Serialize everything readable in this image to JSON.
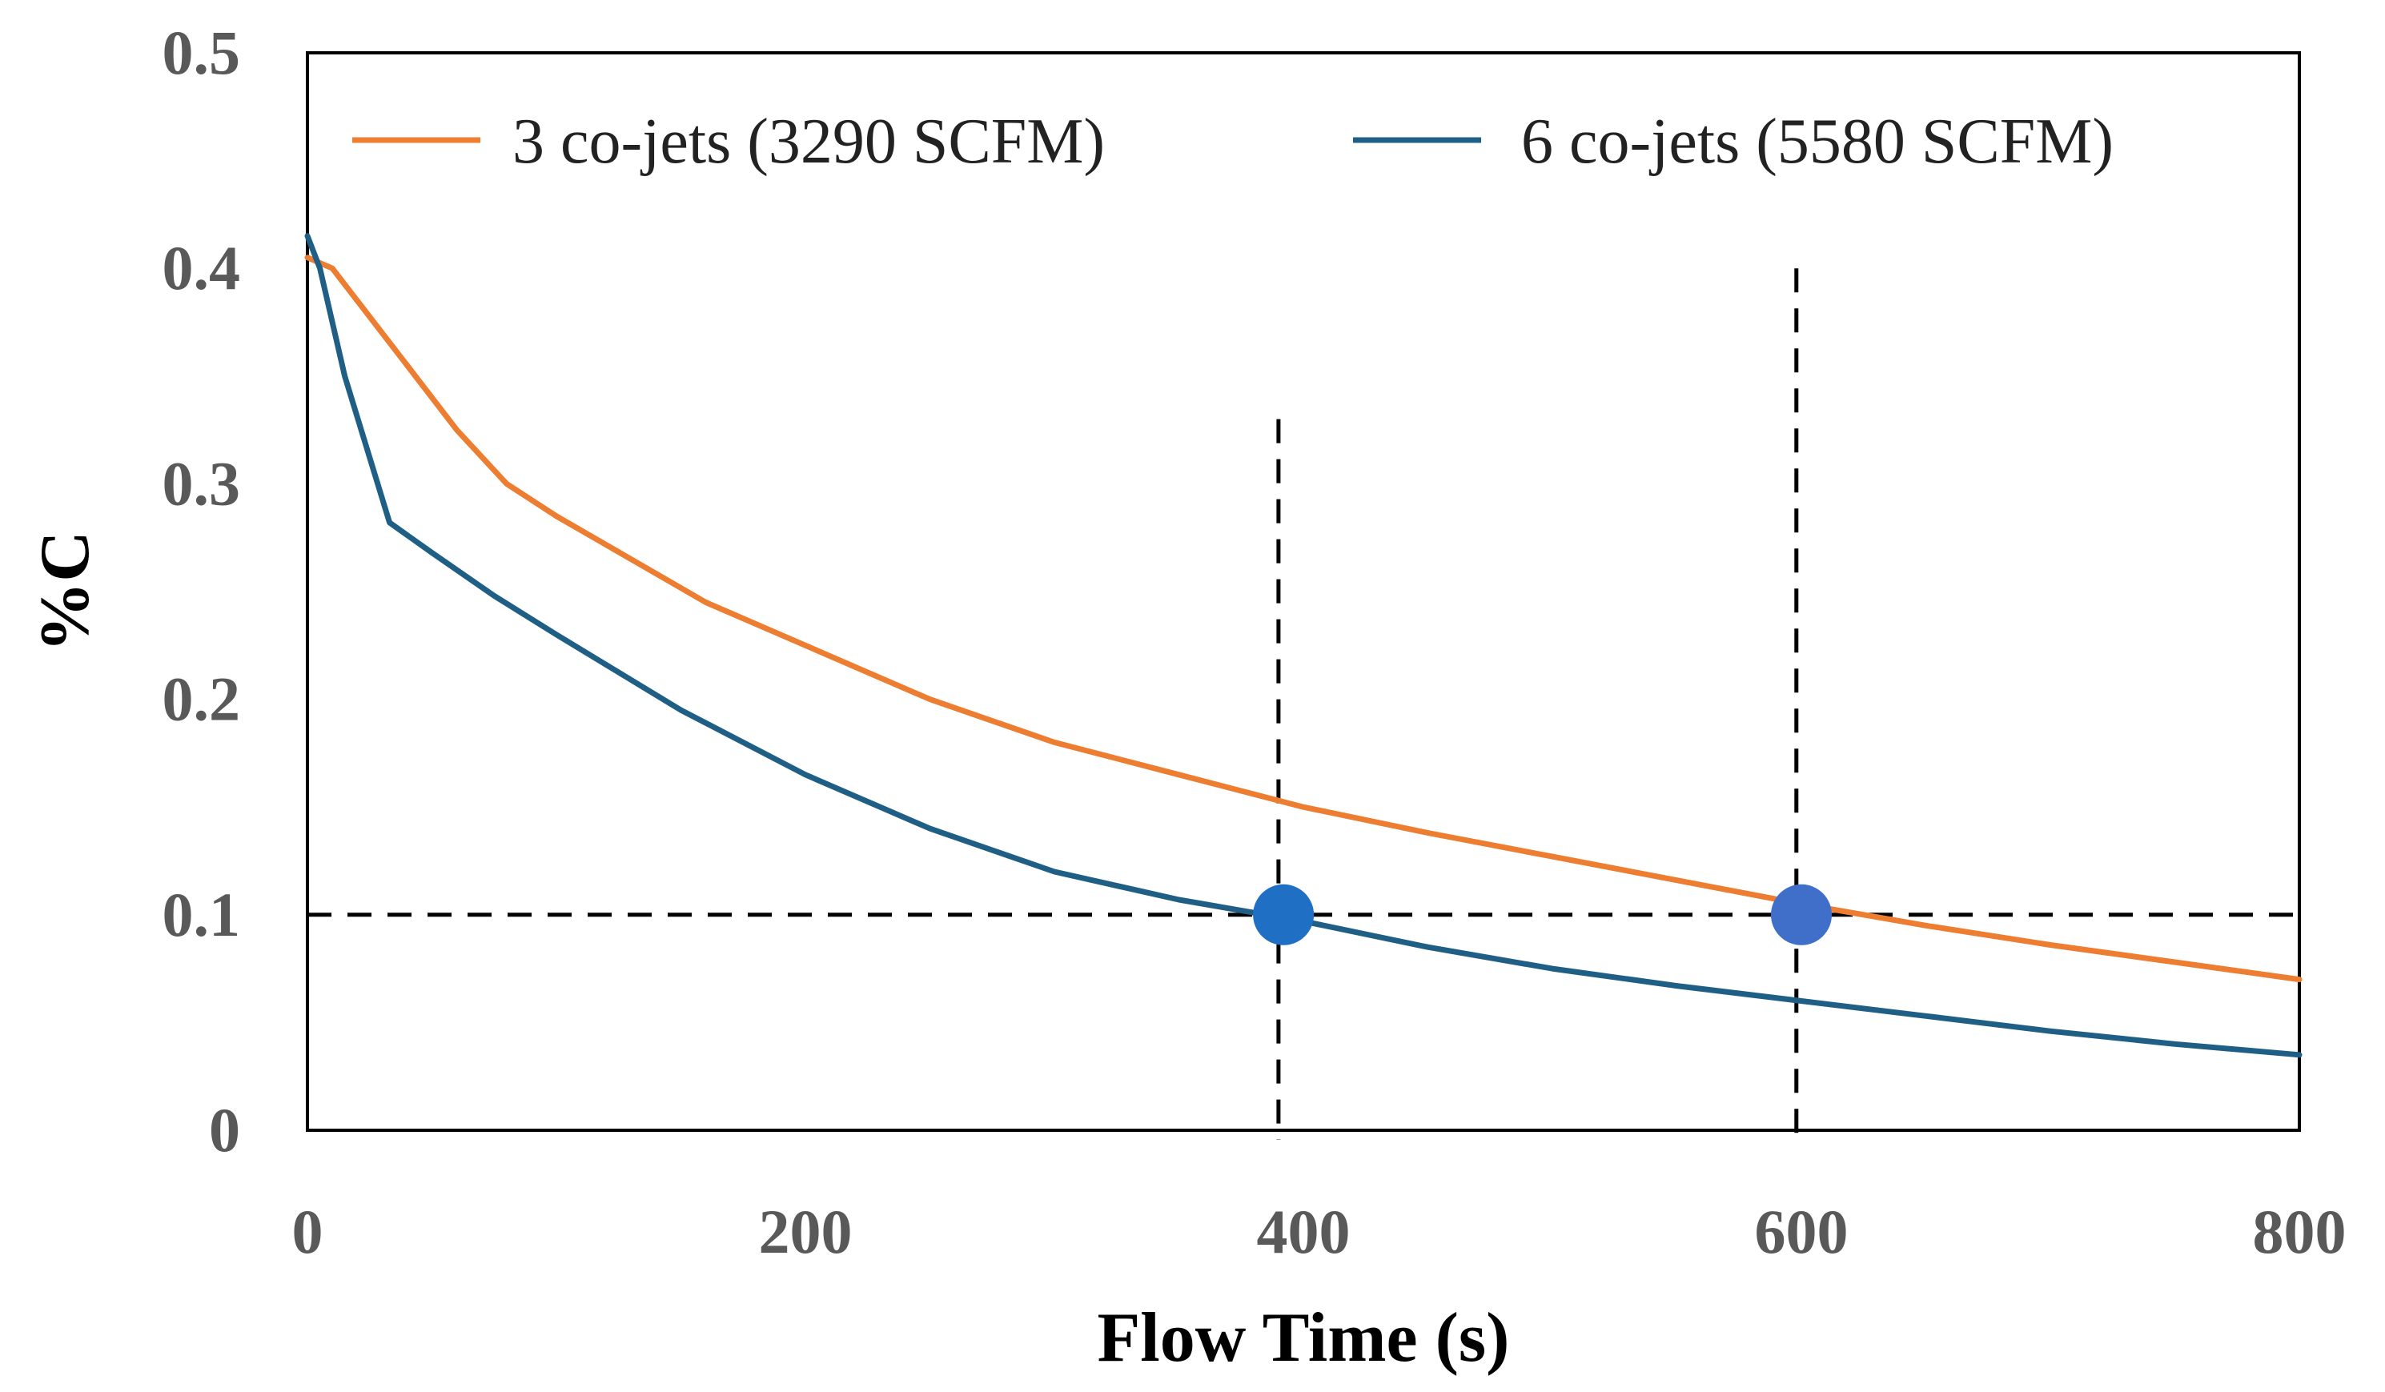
{
  "chart_data": {
    "type": "line",
    "title": "",
    "xlabel": "Flow Time (s)",
    "ylabel": "%C",
    "xlim": [
      0,
      800
    ],
    "ylim": [
      0,
      0.5
    ],
    "xticks": [
      0,
      200,
      400,
      600,
      800
    ],
    "xtick_labels": [
      "0",
      "200",
      "400",
      "600",
      "800"
    ],
    "yticks": [
      0,
      0.1,
      0.2,
      0.3,
      0.4,
      0.5
    ],
    "ytick_labels": [
      "0",
      "0.1",
      "0.2",
      "0.3",
      "0.4",
      "0.5"
    ],
    "grid": false,
    "legend_position": "top",
    "series": [
      {
        "name": "3 co-jets (3290 SCFM)",
        "color": "#ED7D31",
        "x": [
          0,
          10,
          20,
          40,
          60,
          80,
          100,
          130,
          160,
          200,
          250,
          300,
          350,
          400,
          450,
          500,
          550,
          600,
          650,
          700,
          750,
          800
        ],
        "y": [
          0.405,
          0.4,
          0.385,
          0.355,
          0.325,
          0.3,
          0.285,
          0.265,
          0.245,
          0.225,
          0.2,
          0.18,
          0.165,
          0.15,
          0.138,
          0.127,
          0.116,
          0.105,
          0.095,
          0.086,
          0.078,
          0.07
        ]
      },
      {
        "name": "6 co-jets (5580 SCFM)",
        "color": "#1F5F85",
        "x": [
          0,
          5,
          15,
          33,
          50,
          75,
          100,
          150,
          200,
          250,
          300,
          350,
          400,
          450,
          500,
          550,
          600,
          650,
          700,
          750,
          800
        ],
        "y": [
          0.415,
          0.4,
          0.35,
          0.282,
          0.268,
          0.248,
          0.23,
          0.195,
          0.165,
          0.14,
          0.12,
          0.107,
          0.097,
          0.085,
          0.075,
          0.067,
          0.06,
          0.053,
          0.046,
          0.04,
          0.035
        ]
      }
    ],
    "reference_lines": [
      {
        "orientation": "horizontal",
        "value": 0.1,
        "style": "dashed"
      },
      {
        "orientation": "vertical",
        "value": 390,
        "style": "dashed"
      },
      {
        "orientation": "vertical",
        "value": 598,
        "style": "dashed"
      }
    ],
    "markers": [
      {
        "x": 392,
        "y": 0.1,
        "color": "#1F6FC5"
      },
      {
        "x": 600,
        "y": 0.1,
        "color": "#3F6FC8"
      }
    ]
  }
}
